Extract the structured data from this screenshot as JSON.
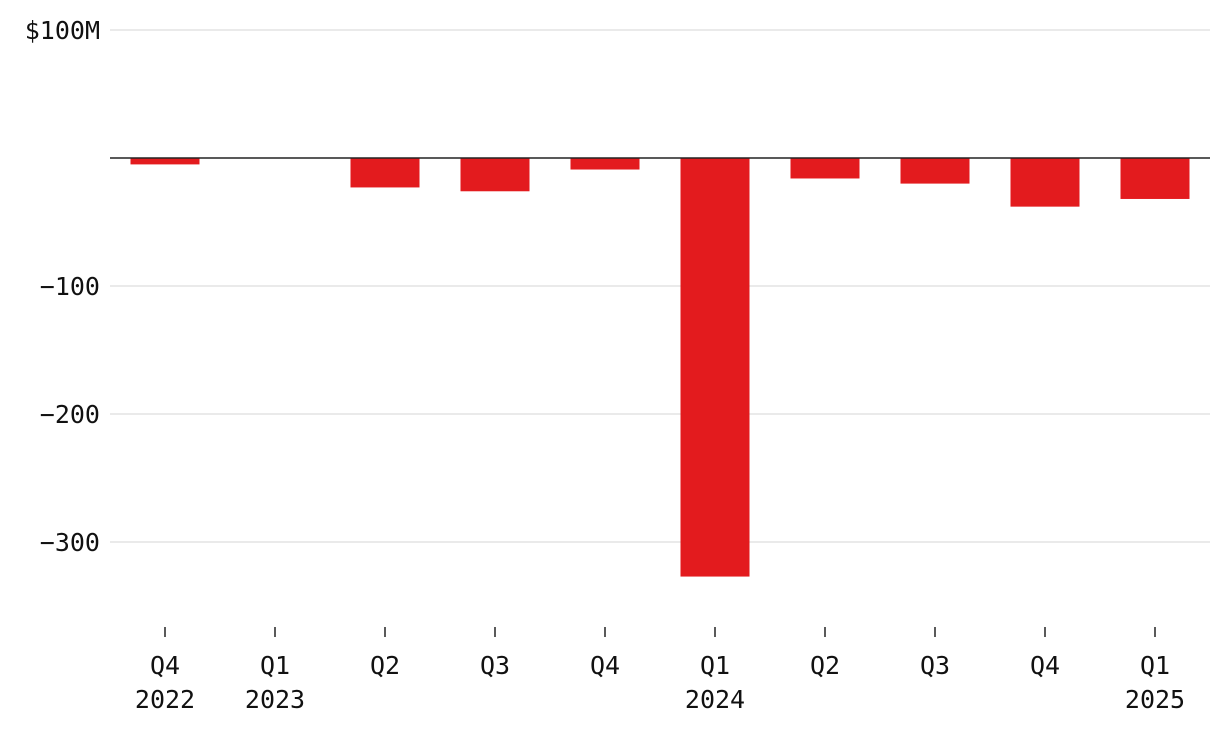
{
  "chart_data": {
    "type": "bar",
    "title": "",
    "xlabel": "",
    "ylabel": "",
    "ylim": [
      -365,
      100
    ],
    "y_ticks": [
      {
        "value": 100,
        "label": "$100M"
      },
      {
        "value": -100,
        "label": "−100"
      },
      {
        "value": -200,
        "label": "−200"
      },
      {
        "value": -300,
        "label": "−300"
      }
    ],
    "categories": [
      {
        "quarter": "Q4",
        "year": "2022"
      },
      {
        "quarter": "Q1",
        "year": "2023"
      },
      {
        "quarter": "Q2",
        "year": ""
      },
      {
        "quarter": "Q3",
        "year": ""
      },
      {
        "quarter": "Q4",
        "year": ""
      },
      {
        "quarter": "Q1",
        "year": "2024"
      },
      {
        "quarter": "Q2",
        "year": ""
      },
      {
        "quarter": "Q3",
        "year": ""
      },
      {
        "quarter": "Q4",
        "year": ""
      },
      {
        "quarter": "Q1",
        "year": "2025"
      }
    ],
    "values": [
      -5,
      0,
      -23,
      -26,
      -9,
      -327,
      -16,
      -20,
      -38,
      -32
    ],
    "bar_color": "#e31b1e",
    "grid": true,
    "legend": "none"
  }
}
